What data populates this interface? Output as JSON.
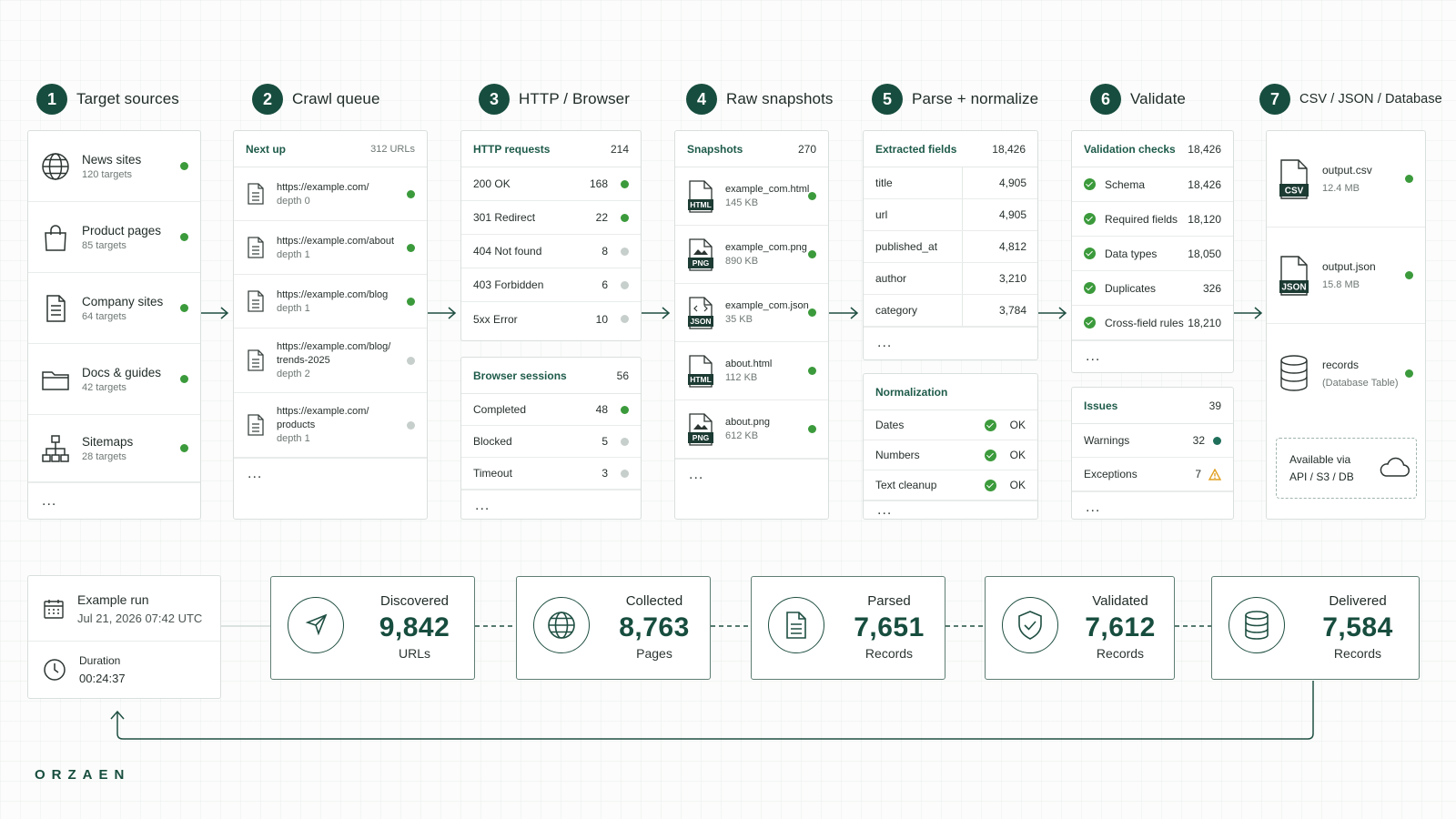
{
  "stages": [
    {
      "number": "1",
      "title": "Target sources"
    },
    {
      "number": "2",
      "title": "Crawl queue"
    },
    {
      "number": "3",
      "title": "HTTP / Browser"
    },
    {
      "number": "4",
      "title": "Raw snapshots"
    },
    {
      "number": "5",
      "title": "Parse + normalize"
    },
    {
      "number": "6",
      "title": "Validate"
    },
    {
      "number": "7",
      "title": "CSV / JSON / Database"
    }
  ],
  "sources": {
    "items": [
      {
        "icon": "globe-icon",
        "name": "News sites",
        "sub": "120 targets",
        "status": "ok"
      },
      {
        "icon": "shopping-bag-icon",
        "name": "Product pages",
        "sub": "85 targets",
        "status": "ok"
      },
      {
        "icon": "document-icon",
        "name": "Company sites",
        "sub": "64 targets",
        "status": "ok"
      },
      {
        "icon": "folder-icon",
        "name": "Docs & guides",
        "sub": "42 targets",
        "status": "ok"
      },
      {
        "icon": "sitemap-icon",
        "name": "Sitemaps",
        "sub": "28 targets",
        "status": "ok"
      }
    ],
    "more": "..."
  },
  "queue": {
    "title": "Next up",
    "count": "312 URLs",
    "items": [
      {
        "lines": [
          "https://example.com/"
        ],
        "depth": "depth 0",
        "status": "ok"
      },
      {
        "lines": [
          "https://example.com/about"
        ],
        "depth": "depth 1",
        "status": "ok"
      },
      {
        "lines": [
          "https://example.com/blog"
        ],
        "depth": "depth 1",
        "status": "ok"
      },
      {
        "lines": [
          "https://example.com/blog/",
          "trends-2025"
        ],
        "depth": "depth 2",
        "status": "pending"
      },
      {
        "lines": [
          "https://example.com/",
          "products"
        ],
        "depth": "depth 1",
        "status": "pending"
      }
    ],
    "more": "..."
  },
  "http": {
    "title": "HTTP requests",
    "count": "214",
    "rows": [
      {
        "label": "200 OK",
        "value": "168",
        "status": "ok"
      },
      {
        "label": "301 Redirect",
        "value": "22",
        "status": "ok"
      },
      {
        "label": "404 Not found",
        "value": "8",
        "status": "pending"
      },
      {
        "label": "403 Forbidden",
        "value": "6",
        "status": "pending"
      },
      {
        "label": "5xx Error",
        "value": "10",
        "status": "pending"
      }
    ]
  },
  "browser": {
    "title": "Browser sessions",
    "count": "56",
    "rows": [
      {
        "label": "Completed",
        "value": "48",
        "status": "ok"
      },
      {
        "label": "Blocked",
        "value": "5",
        "status": "pending"
      },
      {
        "label": "Timeout",
        "value": "3",
        "status": "pending"
      }
    ],
    "more": "..."
  },
  "snapshots": {
    "title": "Snapshots",
    "count": "270",
    "items": [
      {
        "type": "HTML",
        "name": "example_com.html",
        "size": "145 KB",
        "status": "ok"
      },
      {
        "type": "PNG",
        "name": "example_com.png",
        "size": "890 KB",
        "status": "ok"
      },
      {
        "type": "JSON",
        "name": "example_com.json",
        "size": "35 KB",
        "status": "ok"
      },
      {
        "type": "HTML",
        "name": "about.html",
        "size": "112 KB",
        "status": "ok"
      },
      {
        "type": "PNG",
        "name": "about.png",
        "size": "612 KB",
        "status": "ok"
      }
    ],
    "more": "..."
  },
  "fields": {
    "title": "Extracted fields",
    "count": "18,426",
    "rows": [
      {
        "label": "title",
        "value": "4,905"
      },
      {
        "label": "url",
        "value": "4,905"
      },
      {
        "label": "published_at",
        "value": "4,812"
      },
      {
        "label": "author",
        "value": "3,210"
      },
      {
        "label": "category",
        "value": "3,784"
      }
    ],
    "more": "..."
  },
  "normalization": {
    "title": "Normalization",
    "rows": [
      {
        "label": "Dates",
        "value": "OK"
      },
      {
        "label": "Numbers",
        "value": "OK"
      },
      {
        "label": "Text cleanup",
        "value": "OK"
      }
    ],
    "more": "..."
  },
  "validation": {
    "title": "Validation checks",
    "count": "18,426",
    "rows": [
      {
        "label": "Schema",
        "value": "18,426"
      },
      {
        "label": "Required fields",
        "value": "18,120"
      },
      {
        "label": "Data types",
        "value": "18,050"
      },
      {
        "label": "Duplicates",
        "value": "326"
      },
      {
        "label": "Cross-field rules",
        "value": "18,210"
      }
    ],
    "more": "..."
  },
  "issues": {
    "title": "Issues",
    "count": "39",
    "rows": [
      {
        "label": "Warnings",
        "value": "32",
        "marker": "dot"
      },
      {
        "label": "Exceptions",
        "value": "7",
        "marker": "warning"
      }
    ],
    "more": "..."
  },
  "outputs": {
    "items": [
      {
        "type": "CSV",
        "name": "output.csv",
        "sub": "12.4 MB",
        "status": "ok"
      },
      {
        "type": "JSON",
        "name": "output.json",
        "sub": "15.8 MB",
        "status": "ok"
      },
      {
        "type": "DB",
        "name": "records",
        "sub": "(Database Table)",
        "status": "ok"
      }
    ],
    "available": [
      "Available via",
      "API / S3 / DB"
    ]
  },
  "run": {
    "name": "Example run",
    "date": "Jul 21, 2026  07:42 UTC",
    "duration_label": "Duration",
    "duration": "00:24:37"
  },
  "metrics": [
    {
      "icon": "compass-icon",
      "label": "Discovered",
      "value": "9,842",
      "unit": "URLs"
    },
    {
      "icon": "globe-icon",
      "label": "Collected",
      "value": "8,763",
      "unit": "Pages"
    },
    {
      "icon": "document-icon",
      "label": "Parsed",
      "value": "7,651",
      "unit": "Records"
    },
    {
      "icon": "shield-icon",
      "label": "Validated",
      "value": "7,612",
      "unit": "Records"
    },
    {
      "icon": "database-icon",
      "label": "Delivered",
      "value": "7,584",
      "unit": "Records"
    }
  ],
  "brand": "ORZAEN",
  "colors": {
    "accent": "#174d3e",
    "ok": "#3b9a3b",
    "pending": "#c7cfcc",
    "warning": "#e0a020"
  }
}
